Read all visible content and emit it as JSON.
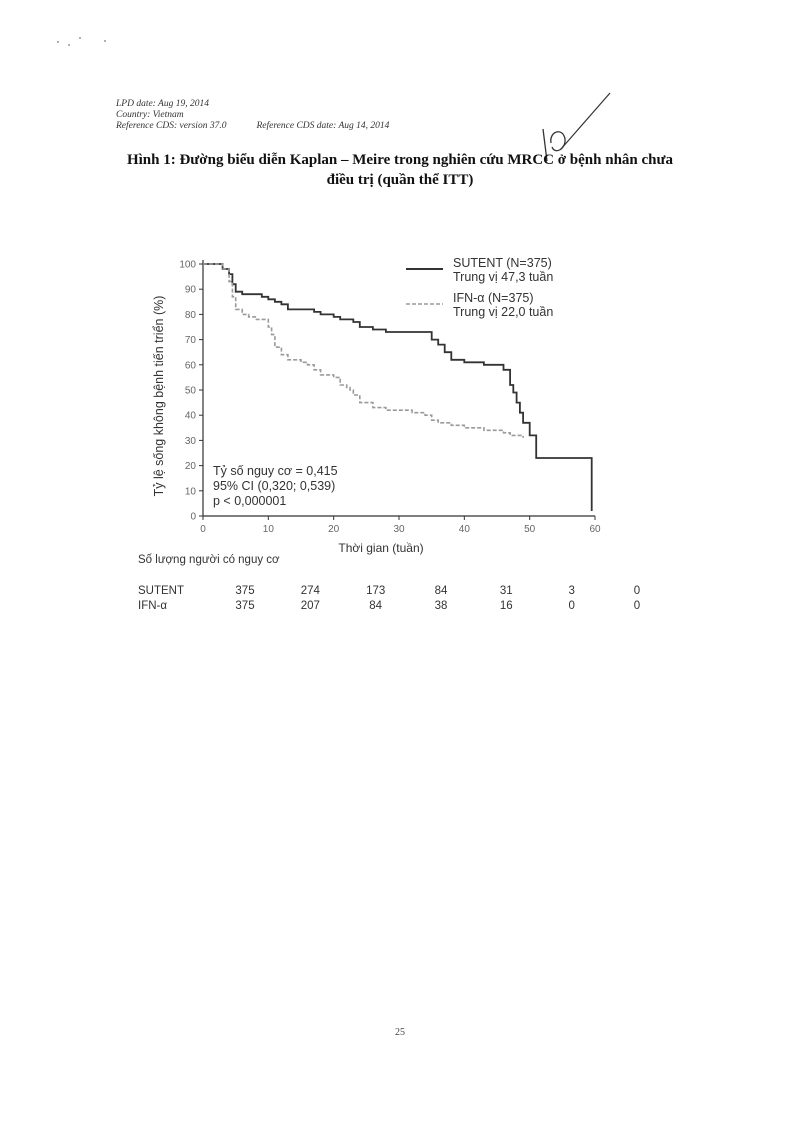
{
  "header": {
    "lpd_date": "LPD date: Aug 19, 2014",
    "country": "Country: Vietnam",
    "reference_cds": "Reference CDS: version 37.0",
    "reference_cds_date": "Reference CDS date: Aug 14, 2014"
  },
  "title_line1": "Hình 1: Đường biểu diễn Kaplan – Meire trong nghiên cứu MRCC ở bệnh nhân chưa",
  "title_line2": "điều trị (quần thể ITT)",
  "page_number": "25",
  "chart_data": {
    "type": "line",
    "xlabel": "Thời gian (tuần)",
    "ylabel": "Tỷ lệ sống không bệnh tiến triển (%)",
    "xlim": [
      0,
      60
    ],
    "ylim": [
      0,
      100
    ],
    "xticks": [
      0,
      10,
      20,
      30,
      40,
      50,
      60
    ],
    "yticks": [
      0,
      10,
      20,
      30,
      40,
      50,
      60,
      70,
      80,
      90,
      100
    ],
    "grid": false,
    "legend_position": "top-right",
    "series": [
      {
        "name": "SUTENT (N=375)",
        "median_label": "Trung vị 47,3 tuần",
        "color": "#333333",
        "style": "solid",
        "x": [
          0,
          2,
          3,
          4,
          4.5,
          5,
          6,
          8,
          9,
          10,
          11,
          12,
          13,
          15,
          16,
          17,
          18,
          20,
          21,
          22,
          23,
          24,
          26,
          28,
          30,
          32,
          34,
          35,
          36,
          37,
          38,
          40,
          42,
          43,
          46,
          47,
          47.5,
          48,
          48.5,
          49,
          50,
          51,
          59.5,
          59.5
        ],
        "y": [
          100,
          100,
          98,
          96,
          92,
          89,
          88,
          88,
          87,
          86,
          85,
          84,
          82,
          82,
          82,
          81,
          80,
          79,
          78,
          78,
          77,
          75,
          74,
          73,
          73,
          73,
          73,
          70,
          68,
          65,
          62,
          61,
          61,
          60,
          58,
          52,
          49,
          45,
          41,
          37,
          32,
          23,
          23,
          2
        ]
      },
      {
        "name": "IFN-α (N=375)",
        "median_label": "Trung vị 22,0 tuần",
        "color": "#9a9a9a",
        "style": "dashed",
        "x": [
          0,
          2,
          3,
          4,
          4.5,
          5,
          6,
          7,
          8,
          9,
          10,
          10.5,
          11,
          12,
          13,
          15,
          16,
          17,
          18,
          20,
          21,
          22,
          22.5,
          23,
          24,
          26,
          28,
          30,
          32,
          34,
          35,
          36,
          38,
          40,
          43,
          46,
          47,
          49
        ],
        "y": [
          100,
          100,
          98,
          93,
          87,
          82,
          80,
          79,
          78,
          78,
          75,
          72,
          67,
          64,
          62,
          61,
          60,
          58,
          56,
          55,
          52,
          51,
          50,
          48,
          45,
          43,
          42,
          42,
          41,
          40,
          38,
          37,
          36,
          35,
          34,
          33,
          32,
          31
        ]
      }
    ],
    "annotations": {
      "hazard_ratio": "Tỷ số nguy cơ = 0,415",
      "ci": "95% CI (0,320; 0,539)",
      "p_value": "p < 0,000001"
    }
  },
  "risk_table": {
    "title": "Số lượng người có nguy cơ",
    "rows": [
      {
        "label": "SUTENT",
        "values": [
          "375",
          "274",
          "173",
          "84",
          "31",
          "3",
          "0"
        ]
      },
      {
        "label": "IFN-α",
        "values": [
          "375",
          "207",
          "84",
          "38",
          "16",
          "0",
          "0"
        ]
      }
    ]
  }
}
